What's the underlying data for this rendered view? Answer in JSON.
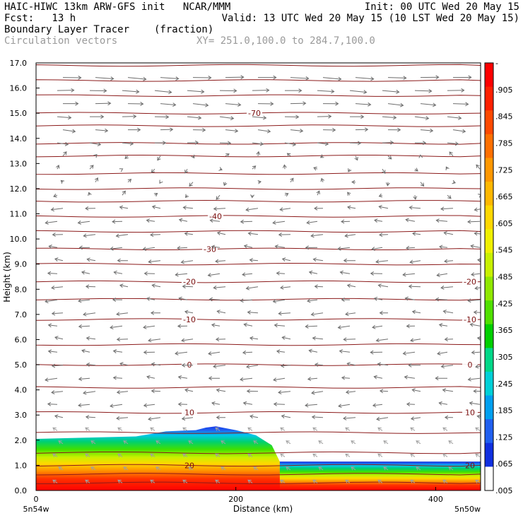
{
  "header": {
    "line1_left": "HAIC-HIWC 13km ARW-GFS init   NCAR/MMM",
    "line1_right": "Init: 00 UTC Wed 20 May 15",
    "line2_left": "Fcst:   13 h",
    "line2_right": "Valid: 13 UTC Wed 20 May 15 (10 LST Wed 20 May 15)",
    "field_name": "Boundary Layer Tracer",
    "field_units": "(fraction)",
    "vectors_label": "Circulation vectors",
    "cross_section": "XY= 251.0,100.0 to 284.7,100.0"
  },
  "chart_data": {
    "type": "heatmap",
    "xlabel": "Distance (km)",
    "ylabel": "Height (km)",
    "xlim": [
      0,
      445
    ],
    "ylim": [
      0,
      17
    ],
    "x_ticks": [
      "0",
      "200",
      "400"
    ],
    "y_ticks": [
      "0.0",
      "1.0",
      "2.0",
      "3.0",
      "4.0",
      "5.0",
      "6.0",
      "7.0",
      "8.0",
      "9.0",
      "10.0",
      "11.0",
      "12.0",
      "13.0",
      "14.0",
      "15.0",
      "16.0",
      "17.0"
    ],
    "x_end_labels": {
      "left": "5n54w",
      "right": "5n50w"
    },
    "tracer_top_profile": {
      "distance_km": [
        0,
        50,
        100,
        130,
        160,
        170,
        180,
        200,
        220,
        236,
        244,
        300,
        445
      ],
      "height_km": [
        2.05,
        2.1,
        2.15,
        2.35,
        2.4,
        2.5,
        2.55,
        2.4,
        2.2,
        1.8,
        1.15,
        1.15,
        1.15
      ]
    },
    "contours": [
      {
        "label": "-70",
        "height_km": 15.0
      },
      {
        "label": "-40",
        "height_km": 10.9
      },
      {
        "label": "-30",
        "height_km": 9.6
      },
      {
        "label": "-20",
        "height_km": 8.3
      },
      {
        "label": "-10",
        "height_km": 6.8
      },
      {
        "label": "0",
        "height_km": 5.0
      },
      {
        "label": "10",
        "height_km": 3.1
      },
      {
        "label": "20",
        "height_km": 1.0
      }
    ],
    "unlabeled_contour_heights_km": [
      0.3,
      0.65,
      1.5,
      2.3,
      4.1,
      5.8,
      7.6,
      9.0,
      10.3,
      11.5,
      12.0,
      12.6,
      13.3,
      13.8,
      14.5,
      15.7,
      16.3,
      16.9
    ],
    "colorbar": {
      "labels": [
        "-",
        ".905",
        ".845",
        ".785",
        ".725",
        ".665",
        ".605",
        ".545",
        ".485",
        ".425",
        ".365",
        ".305",
        ".245",
        ".185",
        ".125",
        ".065",
        ".005"
      ],
      "colors": [
        "#ff0000",
        "#ff2000",
        "#ff4a00",
        "#ff7000",
        "#ff9800",
        "#ffb800",
        "#ffd800",
        "#f0f000",
        "#c8f000",
        "#90e800",
        "#50e000",
        "#00d000",
        "#00d888",
        "#00d0d8",
        "#00a0f0",
        "#2060f0",
        "#1030e0",
        "#ffffff"
      ]
    },
    "wind_vectors": {
      "upper_direction": "westerly (pointing right)",
      "mid_direction": "easterly (pointing left)"
    }
  }
}
